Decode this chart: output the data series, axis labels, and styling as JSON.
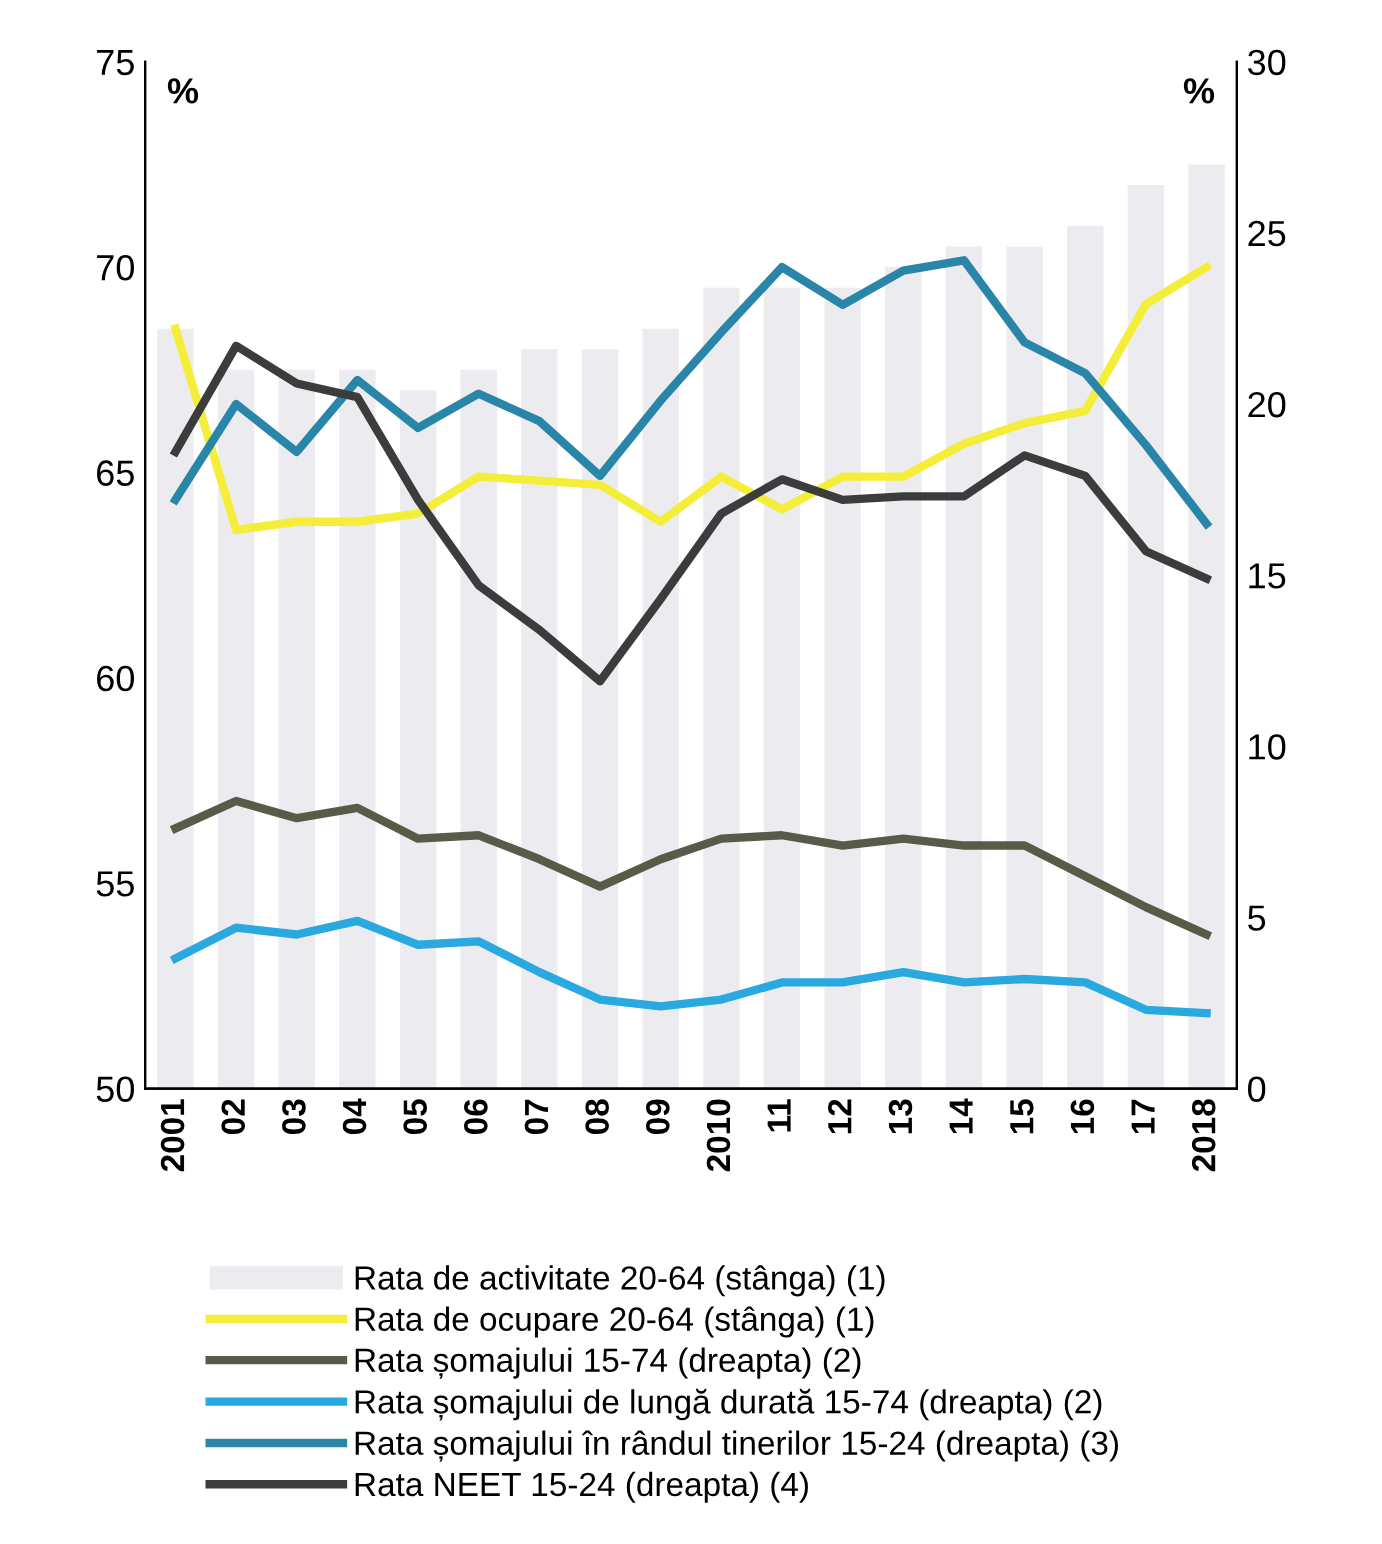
{
  "chart_data": {
    "type": "line",
    "categories": [
      "2001",
      "02",
      "03",
      "04",
      "05",
      "06",
      "07",
      "08",
      "09",
      "2010",
      "11",
      "12",
      "13",
      "14",
      "15",
      "16",
      "17",
      "2018"
    ],
    "ylabel": "%",
    "y2label": "%",
    "ylim": [
      50,
      75
    ],
    "yticks": [
      50,
      55,
      60,
      65,
      70,
      75
    ],
    "y2lim": [
      0,
      30
    ],
    "y2ticks": [
      0,
      5,
      10,
      15,
      20,
      25,
      30
    ],
    "grid": false,
    "legend": "bottom",
    "series": [
      {
        "name": "Rata de activitate 20-64 (stânga) (1)",
        "type": "bar",
        "color": "#ececf0",
        "values": [
          68.5,
          67.5,
          67.5,
          67.5,
          67.0,
          67.5,
          68.0,
          68.0,
          68.5,
          69.5,
          69.5,
          69.5,
          70.0,
          70.5,
          70.5,
          71.0,
          72.0,
          72.5
        ]
      },
      {
        "name": "Rata de ocupare 20-64 (stânga) (1)",
        "color": "#f4ee3a",
        "values": [
          68.5,
          63.6,
          63.8,
          63.8,
          64.0,
          64.9,
          64.8,
          64.7,
          63.8,
          64.9,
          64.1,
          64.9,
          64.9,
          65.7,
          66.2,
          66.5,
          69.1,
          70.0
        ]
      },
      {
        "name": "Rata șomajului 15-74 (dreapta) (2)",
        "axis": "y2",
        "color": "#5a5a48",
        "values": [
          7.6,
          8.4,
          7.9,
          8.2,
          7.3,
          7.4,
          6.7,
          5.9,
          6.7,
          7.3,
          7.4,
          7.1,
          7.3,
          7.1,
          7.1,
          6.2,
          5.3,
          4.5
        ]
      },
      {
        "name": "Rata șomajului de lungă durată 15-74 (dreapta) (2)",
        "axis": "y2",
        "color": "#2aa8e0",
        "values": [
          3.8,
          4.7,
          4.5,
          4.9,
          4.2,
          4.3,
          3.4,
          2.6,
          2.4,
          2.6,
          3.1,
          3.1,
          3.4,
          3.1,
          3.2,
          3.1,
          2.3,
          2.2
        ]
      },
      {
        "name": "Rata șomajului în rândul tinerilor 15-24 (dreapta) (3)",
        "axis": "y2",
        "color": "#2a86a8",
        "values": [
          17.2,
          20.0,
          18.6,
          20.7,
          19.3,
          20.3,
          19.5,
          17.9,
          20.1,
          22.1,
          24.0,
          22.9,
          23.9,
          24.2,
          21.8,
          20.9,
          18.8,
          16.5
        ]
      },
      {
        "name": "Rata NEET 15-24 (dreapta) (4)",
        "axis": "y2",
        "color": "#3c3c3c",
        "values": [
          18.6,
          21.7,
          20.6,
          20.2,
          17.2,
          14.7,
          13.4,
          11.9,
          14.3,
          16.8,
          17.8,
          17.2,
          17.3,
          17.3,
          18.5,
          17.9,
          15.7,
          14.9
        ]
      }
    ]
  }
}
